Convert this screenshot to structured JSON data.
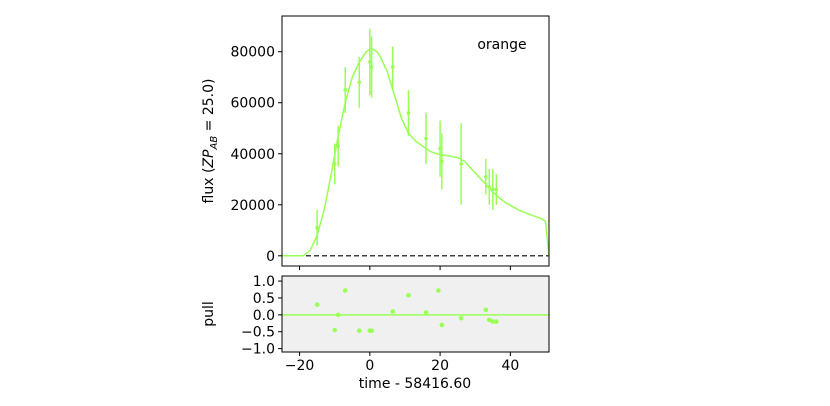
{
  "chart_data": [
    {
      "type": "scatter",
      "panel": "flux",
      "annotation": "orange",
      "ylabel": "flux (ZP_AB = 25.0)",
      "ylabel_parts": {
        "prefix": "flux (",
        "zp": "ZP",
        "sub": "AB",
        "suffix": " = 25.0)"
      },
      "xlim": [
        -25,
        51
      ],
      "ylim": [
        -4000,
        94000
      ],
      "yticks": [
        0,
        20000,
        40000,
        60000,
        80000
      ],
      "ytick_labels": [
        "0",
        "20000",
        "40000",
        "60000",
        "80000"
      ],
      "xticks": [
        -20,
        0,
        20,
        40
      ],
      "zero_line": "dashed",
      "grid": false,
      "color": "#99ff55",
      "series": [
        {
          "kind": "data",
          "points": [
            {
              "x": -15.0,
              "y": 11000,
              "err": 7000
            },
            {
              "x": -10.0,
              "y": 36000,
              "err": 8000
            },
            {
              "x": -9.0,
              "y": 43000,
              "err": 8000
            },
            {
              "x": -7.0,
              "y": 65000,
              "err": 9000
            },
            {
              "x": -3.0,
              "y": 68000,
              "err": 10000
            },
            {
              "x": 0.0,
              "y": 76000,
              "err": 13000
            },
            {
              "x": 0.5,
              "y": 74000,
              "err": 12000
            },
            {
              "x": 6.5,
              "y": 74000,
              "err": 8000
            },
            {
              "x": 11.0,
              "y": 56000,
              "err": 9000
            },
            {
              "x": 16.0,
              "y": 46000,
              "err": 10000
            },
            {
              "x": 20.0,
              "y": 42000,
              "err": 11000
            },
            {
              "x": 20.5,
              "y": 37000,
              "err": 11000
            },
            {
              "x": 26.0,
              "y": 36000,
              "err": 16000
            },
            {
              "x": 33.0,
              "y": 31000,
              "err": 7000
            },
            {
              "x": 34.0,
              "y": 27000,
              "err": 7000
            },
            {
              "x": 35.0,
              "y": 26000,
              "err": 8000
            },
            {
              "x": 36.0,
              "y": 26000,
              "err": 6000
            }
          ]
        },
        {
          "kind": "model",
          "x": [
            -25,
            -21,
            -19,
            -17,
            -15,
            -13,
            -11,
            -9,
            -7,
            -5,
            -3,
            -1,
            0,
            1,
            2,
            3,
            5,
            7,
            9,
            11,
            13,
            15,
            17,
            19,
            21,
            23,
            25,
            27,
            29,
            31,
            33,
            35,
            37,
            39,
            41,
            43,
            45,
            47,
            49,
            50,
            51
          ],
          "y": [
            0,
            0,
            0,
            2000,
            8000,
            18000,
            32000,
            47000,
            60000,
            70000,
            76000,
            80000,
            81000,
            81000,
            80000,
            78000,
            72000,
            63000,
            54000,
            48000,
            45000,
            43000,
            41000,
            40000,
            39500,
            39000,
            38500,
            37000,
            34000,
            31000,
            28000,
            25000,
            22500,
            20500,
            19000,
            17500,
            16500,
            15500,
            14500,
            13500,
            0
          ]
        }
      ]
    },
    {
      "type": "scatter",
      "panel": "pull",
      "xlabel": "time - 58416.60",
      "ylabel": "pull",
      "xlim": [
        -25,
        51
      ],
      "ylim": [
        -1.1,
        1.15
      ],
      "yticks": [
        -1.0,
        -0.5,
        0.0,
        0.5,
        1.0
      ],
      "ytick_labels": [
        "−1.0",
        "−0.5",
        "0.0",
        "0.5",
        "1.0"
      ],
      "xticks": [
        -20,
        0,
        20,
        40
      ],
      "xtick_labels": [
        "−20",
        "0",
        "20",
        "40"
      ],
      "background": "#f0f0f0",
      "color": "#99ff55",
      "zero_line": "solid",
      "points": [
        {
          "x": -15.0,
          "y": 0.3
        },
        {
          "x": -10.0,
          "y": -0.45
        },
        {
          "x": -9.0,
          "y": 0.0
        },
        {
          "x": -7.0,
          "y": 0.72
        },
        {
          "x": -3.0,
          "y": -0.47
        },
        {
          "x": 0.0,
          "y": -0.47
        },
        {
          "x": 0.5,
          "y": -0.47
        },
        {
          "x": 6.5,
          "y": 0.1
        },
        {
          "x": 11.0,
          "y": 0.58
        },
        {
          "x": 16.0,
          "y": 0.07
        },
        {
          "x": 19.5,
          "y": 0.72
        },
        {
          "x": 20.5,
          "y": -0.3
        },
        {
          "x": 26.0,
          "y": -0.1
        },
        {
          "x": 33.0,
          "y": 0.15
        },
        {
          "x": 34.0,
          "y": -0.15
        },
        {
          "x": 35.0,
          "y": -0.2
        },
        {
          "x": 36.0,
          "y": -0.2
        }
      ]
    }
  ]
}
